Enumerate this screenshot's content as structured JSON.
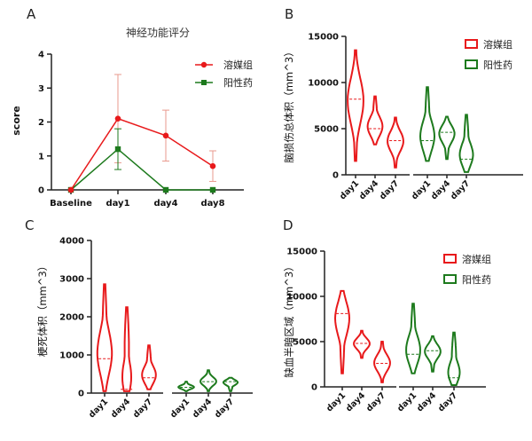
{
  "colors": {
    "vehicle": "#e8191b",
    "drug": "#1d7a1d",
    "errorbar": "#e99a8e",
    "axis": "#222222"
  },
  "chart_data": [
    {
      "panel": "A",
      "type": "line",
      "title": "神经功能评分",
      "xlabel": "",
      "ylabel": "score",
      "categories": [
        "Baseline",
        "day1",
        "day4",
        "day8"
      ],
      "ylim": [
        0,
        4
      ],
      "yticks": [
        0,
        1,
        2,
        3,
        4
      ],
      "series": [
        {
          "name": "溶媒组",
          "values": [
            0,
            2.1,
            1.6,
            0.7
          ],
          "error": [
            0,
            1.3,
            0.75,
            0.45
          ],
          "marker": "circle"
        },
        {
          "name": "阳性药",
          "values": [
            0,
            1.2,
            0,
            0
          ],
          "error": [
            0,
            0.6,
            0,
            0
          ],
          "marker": "square"
        }
      ],
      "legend": "right"
    },
    {
      "panel": "B",
      "type": "violin",
      "ylabel": "脑损伤总体积（mm^3）",
      "ylim": [
        0,
        15000
      ],
      "yticks": [
        0,
        5000,
        10000,
        15000
      ],
      "categories": [
        "day1",
        "day4",
        "day7",
        "day1",
        "day4",
        "day7"
      ],
      "series": [
        {
          "name": "溶媒组",
          "groups": [
            {
              "min": 1500,
              "max": 13500,
              "median": 8200
            },
            {
              "min": 3300,
              "max": 8500,
              "median": 5000
            },
            {
              "min": 800,
              "max": 6200,
              "median": 3700
            }
          ]
        },
        {
          "name": "阳性药",
          "groups": [
            {
              "min": 1500,
              "max": 9500,
              "median": 3700
            },
            {
              "min": 1700,
              "max": 6300,
              "median": 4600
            },
            {
              "min": 300,
              "max": 6500,
              "median": 1700
            }
          ]
        }
      ],
      "legend": "top-right"
    },
    {
      "panel": "C",
      "type": "violin",
      "ylabel": "梗死体积（mm^3）",
      "ylim": [
        0,
        4000
      ],
      "yticks": [
        0,
        1000,
        2000,
        3000,
        4000
      ],
      "categories": [
        "day1",
        "day4",
        "day7",
        "day1",
        "day4",
        "day7"
      ],
      "series": [
        {
          "name": "溶媒组",
          "groups": [
            {
              "min": 50,
              "max": 2850,
              "median": 900
            },
            {
              "min": 50,
              "max": 2250,
              "median": 100
            },
            {
              "min": 100,
              "max": 1250,
              "median": 400
            }
          ]
        },
        {
          "name": "阳性药",
          "groups": [
            {
              "min": 50,
              "max": 300,
              "median": 150
            },
            {
              "min": 50,
              "max": 600,
              "median": 300
            },
            {
              "min": 50,
              "max": 400,
              "median": 300
            }
          ]
        }
      ]
    },
    {
      "panel": "D",
      "type": "violin",
      "ylabel": "缺血半暗区域（mm^3）",
      "ylim": [
        0,
        15000
      ],
      "yticks": [
        0,
        5000,
        10000,
        15000
      ],
      "categories": [
        "day1",
        "day4",
        "day7",
        "day1",
        "day4",
        "day7"
      ],
      "series": [
        {
          "name": "溶媒组",
          "groups": [
            {
              "min": 1500,
              "max": 10600,
              "median": 8100
            },
            {
              "min": 3200,
              "max": 6200,
              "median": 4800
            },
            {
              "min": 500,
              "max": 5000,
              "median": 2600
            }
          ]
        },
        {
          "name": "阳性药",
          "groups": [
            {
              "min": 1500,
              "max": 9200,
              "median": 3600
            },
            {
              "min": 1700,
              "max": 5600,
              "median": 4000
            },
            {
              "min": 200,
              "max": 6000,
              "median": 1000
            }
          ]
        }
      ],
      "legend": "top-right"
    }
  ]
}
